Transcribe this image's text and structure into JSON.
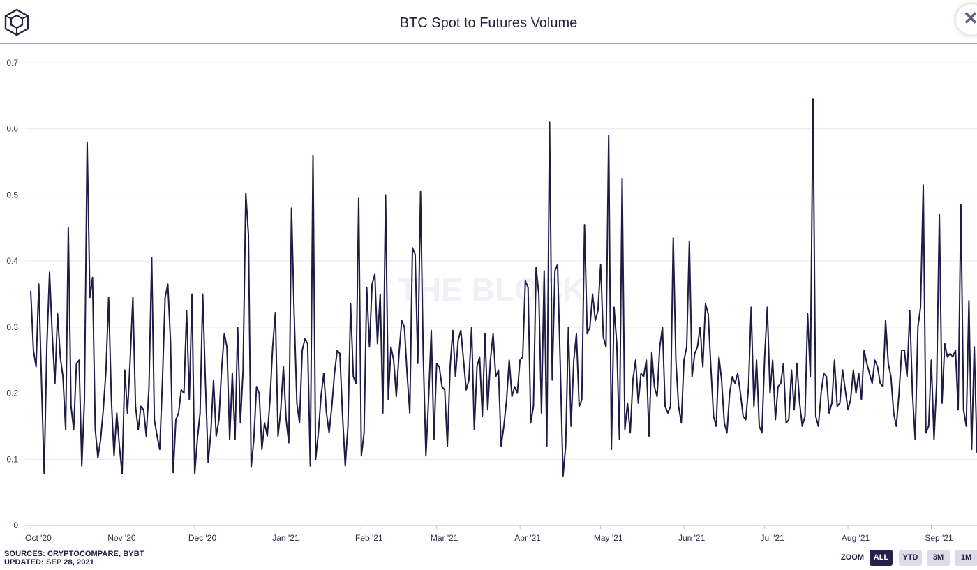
{
  "title": "BTC Spot to Futures Volume",
  "icons": {
    "logo": "the-block-cube-logo",
    "close": "close-icon"
  },
  "colors": {
    "line": "#1e1b44",
    "grid": "#e6e6ee",
    "watermark": "#f1f0f6",
    "active_zoom": "#25224a"
  },
  "watermark": "THE BLOCK",
  "footer": {
    "sources": "SOURCES: CRYPTOCOMPARE, BYBT",
    "updated": "UPDATED: SEP 28, 2021"
  },
  "zoom": {
    "label": "ZOOM",
    "buttons": [
      "ALL",
      "YTD",
      "3M",
      "1M"
    ],
    "active": "ALL"
  },
  "chart_data": {
    "type": "line",
    "title": "BTC Spot to Futures Volume",
    "ylim": [
      0,
      0.7
    ],
    "yticks": [
      0,
      0.1,
      0.2,
      0.3,
      0.4,
      0.5,
      0.6,
      0.7
    ],
    "xticks": [
      "Oct '20",
      "Nov '20",
      "Dec '20",
      "Jan '21",
      "Feb '21",
      "Mar '21",
      "Apr '21",
      "May '21",
      "Jun '21",
      "Jul '21",
      "Aug '21",
      "Sep '21"
    ],
    "grid": true,
    "legend": "none",
    "x_start": "2020-10-01",
    "x_step_days": 1,
    "series": [
      {
        "values": [
          0.355,
          0.265,
          0.24,
          0.365,
          0.22,
          0.078,
          0.27,
          0.383,
          0.29,
          0.215,
          0.32,
          0.255,
          0.225,
          0.145,
          0.45,
          0.18,
          0.145,
          0.245,
          0.25,
          0.09,
          0.19,
          0.58,
          0.345,
          0.375,
          0.145,
          0.102,
          0.13,
          0.175,
          0.235,
          0.345,
          0.19,
          0.105,
          0.17,
          0.12,
          0.078,
          0.235,
          0.17,
          0.25,
          0.345,
          0.18,
          0.145,
          0.18,
          0.175,
          0.135,
          0.21,
          0.405,
          0.16,
          0.135,
          0.115,
          0.22,
          0.345,
          0.365,
          0.28,
          0.08,
          0.16,
          0.17,
          0.205,
          0.2,
          0.325,
          0.19,
          0.35,
          0.078,
          0.13,
          0.17,
          0.35,
          0.215,
          0.095,
          0.14,
          0.22,
          0.135,
          0.16,
          0.235,
          0.29,
          0.27,
          0.13,
          0.23,
          0.13,
          0.3,
          0.155,
          0.235,
          0.503,
          0.44,
          0.088,
          0.13,
          0.21,
          0.2,
          0.115,
          0.155,
          0.135,
          0.19,
          0.27,
          0.322,
          0.135,
          0.175,
          0.24,
          0.16,
          0.125,
          0.48,
          0.32,
          0.185,
          0.155,
          0.265,
          0.282,
          0.275,
          0.09,
          0.56,
          0.1,
          0.14,
          0.195,
          0.23,
          0.17,
          0.14,
          0.18,
          0.23,
          0.265,
          0.26,
          0.165,
          0.09,
          0.15,
          0.335,
          0.225,
          0.215,
          0.495,
          0.105,
          0.14,
          0.36,
          0.27,
          0.365,
          0.38,
          0.275,
          0.35,
          0.17,
          0.5,
          0.19,
          0.27,
          0.25,
          0.195,
          0.26,
          0.31,
          0.3,
          0.23,
          0.17,
          0.42,
          0.41,
          0.245,
          0.505,
          0.26,
          0.105,
          0.19,
          0.295,
          0.13,
          0.245,
          0.24,
          0.21,
          0.205,
          0.12,
          0.24,
          0.295,
          0.225,
          0.28,
          0.295,
          0.25,
          0.205,
          0.22,
          0.3,
          0.145,
          0.24,
          0.255,
          0.165,
          0.29,
          0.175,
          0.25,
          0.29,
          0.225,
          0.235,
          0.12,
          0.15,
          0.19,
          0.25,
          0.195,
          0.21,
          0.2,
          0.25,
          0.255,
          0.37,
          0.36,
          0.155,
          0.18,
          0.39,
          0.35,
          0.17,
          0.385,
          0.12,
          0.61,
          0.22,
          0.385,
          0.395,
          0.24,
          0.075,
          0.12,
          0.3,
          0.15,
          0.25,
          0.29,
          0.18,
          0.19,
          0.455,
          0.29,
          0.3,
          0.35,
          0.31,
          0.325,
          0.395,
          0.285,
          0.27,
          0.59,
          0.115,
          0.33,
          0.275,
          0.13,
          0.525,
          0.145,
          0.185,
          0.14,
          0.22,
          0.25,
          0.185,
          0.23,
          0.225,
          0.25,
          0.135,
          0.262,
          0.21,
          0.195,
          0.27,
          0.3,
          0.18,
          0.17,
          0.18,
          0.435,
          0.25,
          0.18,
          0.155,
          0.25,
          0.27,
          0.43,
          0.225,
          0.26,
          0.27,
          0.3,
          0.24,
          0.335,
          0.32,
          0.24,
          0.165,
          0.15,
          0.255,
          0.22,
          0.155,
          0.14,
          0.2,
          0.225,
          0.215,
          0.23,
          0.2,
          0.165,
          0.16,
          0.21,
          0.33,
          0.18,
          0.25,
          0.15,
          0.14,
          0.255,
          0.33,
          0.2,
          0.25,
          0.16,
          0.21,
          0.215,
          0.245,
          0.155,
          0.16,
          0.235,
          0.175,
          0.245,
          0.185,
          0.15,
          0.165,
          0.32,
          0.225,
          0.645,
          0.165,
          0.15,
          0.2,
          0.23,
          0.225,
          0.17,
          0.185,
          0.25,
          0.18,
          0.185,
          0.235,
          0.205,
          0.175,
          0.19,
          0.235,
          0.2,
          0.23,
          0.19,
          0.265,
          0.245,
          0.23,
          0.215,
          0.25,
          0.24,
          0.215,
          0.21,
          0.31,
          0.245,
          0.225,
          0.17,
          0.15,
          0.2,
          0.265,
          0.265,
          0.225,
          0.325,
          0.2,
          0.13,
          0.3,
          0.33,
          0.515,
          0.14,
          0.15,
          0.25,
          0.13,
          0.215,
          0.47,
          0.185,
          0.275,
          0.255,
          0.26,
          0.255,
          0.265,
          0.175,
          0.485,
          0.175,
          0.15,
          0.34,
          0.115,
          0.27,
          0.11
        ]
      }
    ]
  }
}
